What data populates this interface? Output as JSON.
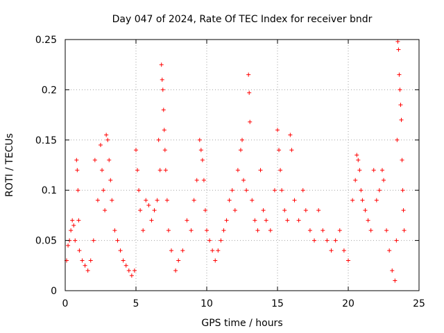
{
  "chart_data": {
    "type": "scatter",
    "title": "Day 047 of 2024, Rate Of TEC Index for receiver bndr",
    "xlabel": "GPS time / hours",
    "ylabel": "ROTI / TECUs",
    "xlim": [
      0,
      25
    ],
    "ylim": [
      0,
      0.25
    ],
    "xticks": [
      0,
      5,
      10,
      15,
      20,
      25
    ],
    "xtick_labels": [
      "0",
      "5",
      "10",
      "15",
      "20",
      "25"
    ],
    "yticks": [
      0,
      0.05,
      0.1,
      0.15,
      0.2,
      0.25
    ],
    "ytick_labels": [
      "0",
      "0.05",
      "0.1",
      "0.15",
      "0.2",
      "0.25"
    ],
    "grid": true,
    "marker": "+",
    "series": [
      {
        "name": "ROTI",
        "color": "#ff0000",
        "points": [
          [
            0.1,
            0.03
          ],
          [
            0.2,
            0.045
          ],
          [
            0.3,
            0.05
          ],
          [
            0.4,
            0.06
          ],
          [
            0.5,
            0.07
          ],
          [
            0.6,
            0.065
          ],
          [
            0.7,
            0.05
          ],
          [
            0.8,
            0.13
          ],
          [
            0.85,
            0.12
          ],
          [
            0.9,
            0.1
          ],
          [
            0.95,
            0.07
          ],
          [
            1.0,
            0.04
          ],
          [
            1.2,
            0.03
          ],
          [
            1.4,
            0.025
          ],
          [
            1.6,
            0.02
          ],
          [
            1.8,
            0.03
          ],
          [
            2.0,
            0.05
          ],
          [
            2.1,
            0.13
          ],
          [
            2.3,
            0.09
          ],
          [
            2.5,
            0.145
          ],
          [
            2.6,
            0.12
          ],
          [
            2.7,
            0.1
          ],
          [
            2.8,
            0.08
          ],
          [
            2.9,
            0.155
          ],
          [
            3.0,
            0.15
          ],
          [
            3.1,
            0.13
          ],
          [
            3.2,
            0.11
          ],
          [
            3.3,
            0.09
          ],
          [
            3.5,
            0.06
          ],
          [
            3.7,
            0.05
          ],
          [
            3.9,
            0.04
          ],
          [
            4.1,
            0.03
          ],
          [
            4.3,
            0.025
          ],
          [
            4.5,
            0.02
          ],
          [
            4.7,
            0.015
          ],
          [
            4.9,
            0.02
          ],
          [
            5.0,
            0.14
          ],
          [
            5.1,
            0.12
          ],
          [
            5.2,
            0.1
          ],
          [
            5.3,
            0.08
          ],
          [
            5.5,
            0.06
          ],
          [
            5.7,
            0.09
          ],
          [
            5.9,
            0.085
          ],
          [
            6.1,
            0.07
          ],
          [
            6.3,
            0.08
          ],
          [
            6.5,
            0.09
          ],
          [
            6.6,
            0.15
          ],
          [
            6.7,
            0.12
          ],
          [
            6.8,
            0.225
          ],
          [
            6.85,
            0.21
          ],
          [
            6.9,
            0.2
          ],
          [
            6.95,
            0.18
          ],
          [
            7.0,
            0.16
          ],
          [
            7.05,
            0.14
          ],
          [
            7.1,
            0.12
          ],
          [
            7.2,
            0.09
          ],
          [
            7.3,
            0.06
          ],
          [
            7.5,
            0.04
          ],
          [
            7.8,
            0.02
          ],
          [
            8.0,
            0.03
          ],
          [
            8.3,
            0.04
          ],
          [
            8.6,
            0.07
          ],
          [
            8.9,
            0.06
          ],
          [
            9.1,
            0.09
          ],
          [
            9.3,
            0.11
          ],
          [
            9.5,
            0.15
          ],
          [
            9.6,
            0.14
          ],
          [
            9.7,
            0.13
          ],
          [
            9.8,
            0.11
          ],
          [
            9.9,
            0.08
          ],
          [
            10.0,
            0.06
          ],
          [
            10.2,
            0.05
          ],
          [
            10.4,
            0.04
          ],
          [
            10.6,
            0.03
          ],
          [
            10.8,
            0.04
          ],
          [
            11.0,
            0.05
          ],
          [
            11.2,
            0.06
          ],
          [
            11.4,
            0.07
          ],
          [
            11.6,
            0.09
          ],
          [
            11.8,
            0.1
          ],
          [
            12.0,
            0.08
          ],
          [
            12.2,
            0.12
          ],
          [
            12.4,
            0.14
          ],
          [
            12.5,
            0.15
          ],
          [
            12.6,
            0.11
          ],
          [
            12.8,
            0.1
          ],
          [
            12.95,
            0.215
          ],
          [
            13.0,
            0.197
          ],
          [
            13.05,
            0.168
          ],
          [
            13.2,
            0.09
          ],
          [
            13.4,
            0.07
          ],
          [
            13.6,
            0.06
          ],
          [
            13.8,
            0.12
          ],
          [
            14.0,
            0.08
          ],
          [
            14.2,
            0.07
          ],
          [
            14.5,
            0.06
          ],
          [
            14.8,
            0.1
          ],
          [
            15.0,
            0.16
          ],
          [
            15.1,
            0.14
          ],
          [
            15.2,
            0.12
          ],
          [
            15.3,
            0.1
          ],
          [
            15.5,
            0.08
          ],
          [
            15.7,
            0.07
          ],
          [
            15.9,
            0.155
          ],
          [
            16.0,
            0.14
          ],
          [
            16.2,
            0.09
          ],
          [
            16.5,
            0.07
          ],
          [
            16.8,
            0.1
          ],
          [
            17.0,
            0.08
          ],
          [
            17.3,
            0.06
          ],
          [
            17.6,
            0.05
          ],
          [
            17.9,
            0.08
          ],
          [
            18.2,
            0.06
          ],
          [
            18.5,
            0.05
          ],
          [
            18.8,
            0.04
          ],
          [
            19.1,
            0.05
          ],
          [
            19.4,
            0.06
          ],
          [
            19.7,
            0.04
          ],
          [
            20.0,
            0.03
          ],
          [
            20.3,
            0.09
          ],
          [
            20.5,
            0.11
          ],
          [
            20.6,
            0.135
          ],
          [
            20.7,
            0.13
          ],
          [
            20.8,
            0.12
          ],
          [
            20.9,
            0.1
          ],
          [
            21.0,
            0.09
          ],
          [
            21.2,
            0.08
          ],
          [
            21.4,
            0.07
          ],
          [
            21.6,
            0.06
          ],
          [
            21.8,
            0.12
          ],
          [
            22.0,
            0.09
          ],
          [
            22.2,
            0.1
          ],
          [
            22.4,
            0.12
          ],
          [
            22.5,
            0.11
          ],
          [
            22.7,
            0.06
          ],
          [
            22.9,
            0.04
          ],
          [
            23.1,
            0.02
          ],
          [
            23.3,
            0.01
          ],
          [
            23.4,
            0.05
          ],
          [
            23.45,
            0.15
          ],
          [
            23.5,
            0.248
          ],
          [
            23.55,
            0.24
          ],
          [
            23.6,
            0.215
          ],
          [
            23.65,
            0.2
          ],
          [
            23.7,
            0.185
          ],
          [
            23.75,
            0.17
          ],
          [
            23.8,
            0.13
          ],
          [
            23.85,
            0.1
          ],
          [
            23.9,
            0.08
          ],
          [
            23.95,
            0.06
          ]
        ]
      }
    ]
  }
}
